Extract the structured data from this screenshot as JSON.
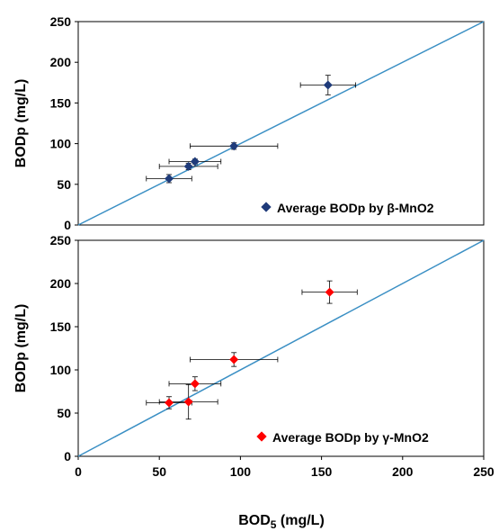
{
  "chart_data": [
    {
      "type": "scatter",
      "xlabel": "",
      "ylabel": "BODp (mg/L)",
      "xlim": [
        0,
        250
      ],
      "ylim": [
        0,
        250
      ],
      "xticks": [],
      "yticks": [
        "0",
        "50",
        "100",
        "150",
        "200",
        "250"
      ],
      "grid": false,
      "legend_position": "bottom-right",
      "marker": "diamond",
      "marker_color": "#1f3b7a",
      "reference_line": {
        "x": [
          0,
          250
        ],
        "y": [
          0,
          250
        ],
        "color": "#3a8fc4"
      },
      "series": [
        {
          "name": "Average BODp by β-MnO2",
          "points": [
            {
              "x": 56,
              "y": 57,
              "xerr": 14,
              "yerr": 5
            },
            {
              "x": 68,
              "y": 72,
              "xerr": 18,
              "yerr": 4
            },
            {
              "x": 72,
              "y": 78,
              "xerr": 16,
              "yerr": 3
            },
            {
              "x": 96,
              "y": 97,
              "xerr": 27,
              "yerr": 4
            },
            {
              "x": 154,
              "y": 172,
              "xerr": 17,
              "yerr": 12
            }
          ]
        }
      ]
    },
    {
      "type": "scatter",
      "xlabel": "BOD5 (mg/L)",
      "xlabel_main": "BOD",
      "xlabel_sub": "5",
      "xlabel_unit": " (mg/L)",
      "ylabel": "BODp (mg/L)",
      "xlim": [
        0,
        250
      ],
      "ylim": [
        0,
        250
      ],
      "xticks": [
        "0",
        "50",
        "100",
        "150",
        "200",
        "250"
      ],
      "yticks": [
        "0",
        "50",
        "100",
        "150",
        "200",
        "250"
      ],
      "grid": false,
      "legend_position": "bottom-right",
      "marker": "diamond",
      "marker_color": "#ff0000",
      "reference_line": {
        "x": [
          0,
          250
        ],
        "y": [
          0,
          250
        ],
        "color": "#3a8fc4"
      },
      "series": [
        {
          "name": "Average BODp by γ-MnO2",
          "points": [
            {
              "x": 56,
              "y": 62,
              "xerr": 14,
              "yerr": 7
            },
            {
              "x": 68,
              "y": 63,
              "xerr": 18,
              "yerr": 20
            },
            {
              "x": 72,
              "y": 84,
              "xerr": 16,
              "yerr": 8
            },
            {
              "x": 96,
              "y": 112,
              "xerr": 27,
              "yerr": 8
            },
            {
              "x": 155,
              "y": 190,
              "xerr": 17,
              "yerr": 13
            }
          ]
        }
      ]
    }
  ]
}
